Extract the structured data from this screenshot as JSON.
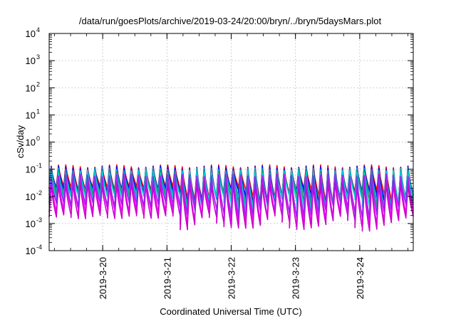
{
  "chart_data": {
    "type": "line",
    "title": "/data/run/goesPlots/archive/2019-03-24/20:00/bryn/../bryn/5daysMars.plot",
    "xlabel": "Coordinated Universal Time (UTC)",
    "ylabel": "cSv/day",
    "y_scale": "log",
    "ylim": [
      0.0001,
      10000
    ],
    "y_ticks": [
      {
        "base": "10",
        "exp": "-4"
      },
      {
        "base": "10",
        "exp": "-3"
      },
      {
        "base": "10",
        "exp": "-2"
      },
      {
        "base": "10",
        "exp": "-1"
      },
      {
        "base": "10",
        "exp": "0"
      },
      {
        "base": "10",
        "exp": "1"
      },
      {
        "base": "10",
        "exp": "2"
      },
      {
        "base": "10",
        "exp": "3"
      },
      {
        "base": "10",
        "exp": "4"
      }
    ],
    "xlim": [
      "2019-03-19T04:00",
      "2019-03-24T20:00"
    ],
    "x_ticks": [
      "2019-3-20",
      "2019-3-21",
      "2019-3-22",
      "2019-3-23",
      "2019-3-24"
    ],
    "grid": true,
    "legend": "none",
    "pattern": {
      "cycles": 50,
      "rise_fraction": 0.28,
      "late_decay_extra": 0.5
    },
    "series": [
      {
        "color": "#ff0000",
        "peak": 0.13,
        "trough": 0.02
      },
      {
        "color": "#0000ff",
        "peak": 0.115,
        "trough": 0.016
      },
      {
        "color": "#00a6c8",
        "peak": 0.1,
        "trough": 0.013
      },
      {
        "color": "#2e8b57",
        "peak": 0.085,
        "trough": 0.011
      },
      {
        "color": "#00ced1",
        "peak": 0.08,
        "trough": 0.009
      },
      {
        "color": "#ff00ff",
        "peak": 0.05,
        "trough": 0.003
      },
      {
        "color": "#cc00cc",
        "peak": 0.03,
        "trough": 0.0018
      },
      {
        "color": "#a020f0",
        "peak": 0.06,
        "trough": 0.005
      }
    ]
  }
}
